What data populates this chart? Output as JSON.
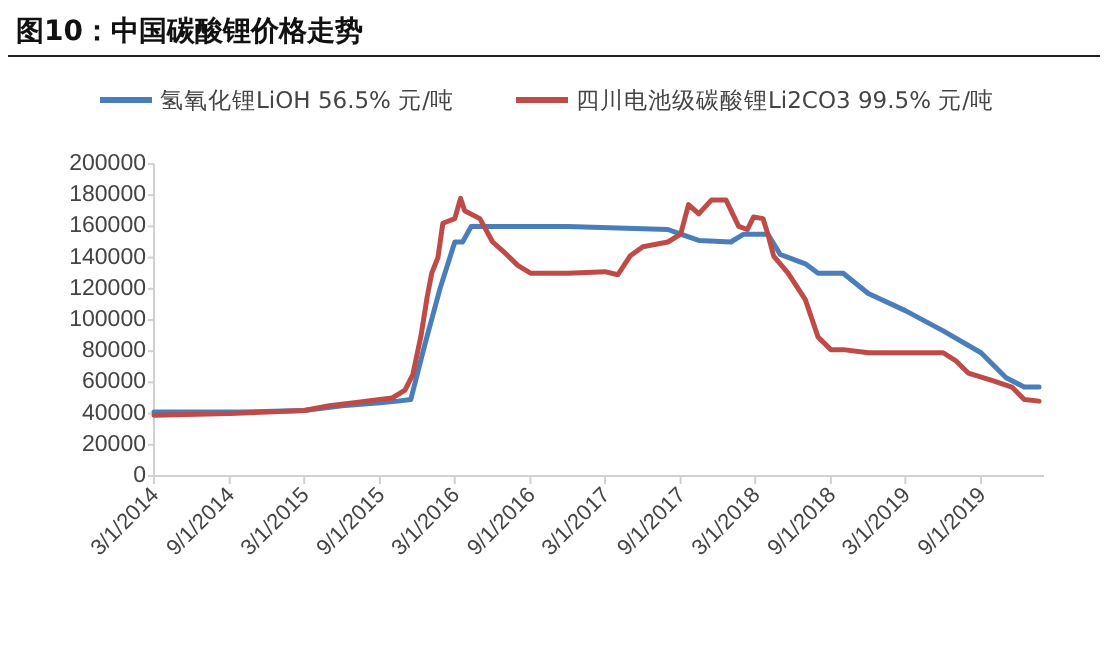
{
  "chart_data": {
    "type": "line",
    "title": "图10：中国碳酸锂价格走势",
    "legend": "top",
    "line_style": "solid",
    "marker": "none",
    "xlim": [
      "2014-03-01",
      "2020-02-01"
    ],
    "ylim": [
      0,
      200000
    ],
    "yticks": [
      0,
      20000,
      40000,
      60000,
      80000,
      100000,
      120000,
      140000,
      160000,
      180000,
      200000
    ],
    "xticks": [
      {
        "value": "2014-03-01",
        "label": "3/1/2014"
      },
      {
        "value": "2014-09-01",
        "label": "9/1/2014"
      },
      {
        "value": "2015-03-01",
        "label": "3/1/2015"
      },
      {
        "value": "2015-09-01",
        "label": "9/1/2015"
      },
      {
        "value": "2016-03-01",
        "label": "3/1/2016"
      },
      {
        "value": "2016-09-01",
        "label": "9/1/2016"
      },
      {
        "value": "2017-03-01",
        "label": "3/1/2017"
      },
      {
        "value": "2017-09-01",
        "label": "9/1/2017"
      },
      {
        "value": "2018-03-01",
        "label": "3/1/2018"
      },
      {
        "value": "2018-09-01",
        "label": "9/1/2018"
      },
      {
        "value": "2019-03-01",
        "label": "3/1/2019"
      },
      {
        "value": "2019-09-01",
        "label": "9/1/2019"
      }
    ],
    "series": [
      {
        "name": "氢氧化锂LiOH 56.5% 元/吨",
        "color": "#4a7ebb",
        "x": [
          "2014-03-01",
          "2014-10-01",
          "2015-03-01",
          "2015-06-01",
          "2015-09-01",
          "2015-10-15",
          "2015-11-15",
          "2015-12-20",
          "2016-01-25",
          "2016-03-01",
          "2016-03-20",
          "2016-04-10",
          "2016-12-01",
          "2017-08-01",
          "2017-09-01",
          "2017-10-15",
          "2018-01-01",
          "2018-02-01",
          "2018-04-01",
          "2018-05-01",
          "2018-07-01",
          "2018-08-01",
          "2018-10-01",
          "2018-12-01",
          "2019-03-01",
          "2019-06-01",
          "2019-09-01",
          "2019-11-01",
          "2019-12-15",
          "2020-01-20"
        ],
        "values": [
          41000,
          41000,
          42000,
          45000,
          47000,
          48000,
          49000,
          85000,
          120000,
          150000,
          150000,
          160000,
          160000,
          158000,
          155000,
          151000,
          150000,
          155000,
          155000,
          142000,
          136000,
          130000,
          130000,
          117000,
          106000,
          93000,
          79000,
          63000,
          57000,
          57000
        ]
      },
      {
        "name": "四川电池级碳酸锂Li2CO3 99.5% 元/吨",
        "color": "#be4b48",
        "x": [
          "2014-03-01",
          "2014-09-01",
          "2014-12-01",
          "2015-03-01",
          "2015-05-01",
          "2015-07-01",
          "2015-09-01",
          "2015-10-01",
          "2015-11-01",
          "2015-11-20",
          "2015-12-10",
          "2015-12-25",
          "2016-01-05",
          "2016-01-20",
          "2016-02-01",
          "2016-03-01",
          "2016-03-15",
          "2016-03-25",
          "2016-05-01",
          "2016-06-01",
          "2016-07-01",
          "2016-08-01",
          "2016-09-01",
          "2016-12-01",
          "2017-03-01",
          "2017-04-01",
          "2017-05-01",
          "2017-06-01",
          "2017-08-01",
          "2017-09-01",
          "2017-09-20",
          "2017-10-15",
          "2017-11-15",
          "2017-12-20",
          "2018-01-20",
          "2018-02-10",
          "2018-02-25",
          "2018-03-20",
          "2018-04-01",
          "2018-04-15",
          "2018-05-20",
          "2018-07-01",
          "2018-08-01",
          "2018-09-01",
          "2018-10-01",
          "2018-12-01",
          "2019-03-01",
          "2019-06-01",
          "2019-07-01",
          "2019-08-01",
          "2019-10-01",
          "2019-11-15",
          "2019-12-15",
          "2020-01-20"
        ],
        "values": [
          39000,
          40000,
          41000,
          42000,
          45000,
          47000,
          49000,
          50000,
          55000,
          65000,
          90000,
          115000,
          130000,
          140000,
          162000,
          165000,
          178000,
          170000,
          165000,
          150000,
          143000,
          135000,
          130000,
          130000,
          131000,
          129000,
          141000,
          147000,
          150000,
          155000,
          174000,
          168000,
          177000,
          177000,
          160000,
          158000,
          166000,
          165000,
          155000,
          141000,
          130000,
          113000,
          89000,
          81000,
          81000,
          79000,
          79000,
          79000,
          74000,
          66000,
          61000,
          57000,
          49000,
          48000
        ]
      }
    ]
  }
}
